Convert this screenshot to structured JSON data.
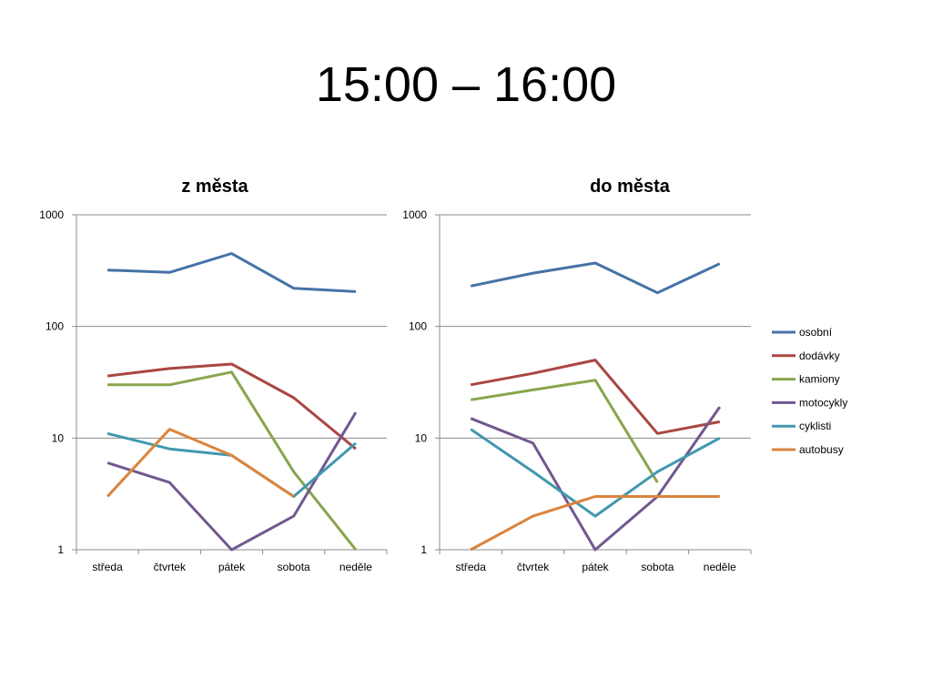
{
  "slide": {
    "title": "15:00 – 16:00"
  },
  "series_colors": {
    "osobní": "#4572a7",
    "dodávky": "#aa4643",
    "kamiony": "#89a54e",
    "motocykly": "#71588f",
    "cyklisti": "#4198af",
    "autobusy": "#db843d"
  },
  "legend": [
    "osobní",
    "dodávky",
    "kamiony",
    "motocykly",
    "cyklisti",
    "autobusy"
  ],
  "chart_data": [
    {
      "type": "line",
      "title": "z města",
      "y_scale": "log",
      "ylim": [
        1,
        1000
      ],
      "y_ticks": [
        "1",
        "10",
        "100",
        "1000"
      ],
      "grid": true,
      "categories": [
        "středa",
        "čtvrtek",
        "pátek",
        "sobota",
        "neděle"
      ],
      "series": [
        {
          "name": "osobní",
          "values": [
            320,
            305,
            450,
            220,
            205
          ]
        },
        {
          "name": "dodávky",
          "values": [
            36,
            42,
            46,
            23,
            8
          ]
        },
        {
          "name": "kamiony",
          "values": [
            30,
            30,
            39,
            5,
            1
          ]
        },
        {
          "name": "motocykly",
          "values": [
            6,
            4,
            1,
            2,
            17
          ]
        },
        {
          "name": "cyklisti",
          "values": [
            11,
            8,
            7,
            3,
            9
          ]
        },
        {
          "name": "autobusy",
          "values": [
            3,
            12,
            7,
            3,
            null
          ]
        }
      ]
    },
    {
      "type": "line",
      "title": "do města",
      "y_scale": "log",
      "ylim": [
        1,
        1000
      ],
      "y_ticks": [
        "1",
        "10",
        "100",
        "1000"
      ],
      "grid": true,
      "legend_position": "right",
      "categories": [
        "středa",
        "čtvrtek",
        "pátek",
        "sobota",
        "neděle"
      ],
      "series": [
        {
          "name": "osobní",
          "values": [
            230,
            300,
            370,
            200,
            365
          ]
        },
        {
          "name": "dodávky",
          "values": [
            30,
            38,
            50,
            11,
            14
          ]
        },
        {
          "name": "kamiony",
          "values": [
            22,
            27,
            33,
            4,
            null
          ]
        },
        {
          "name": "motocykly",
          "values": [
            15,
            9,
            1,
            3,
            19
          ]
        },
        {
          "name": "cyklisti",
          "values": [
            12,
            5,
            2,
            5,
            10
          ]
        },
        {
          "name": "autobusy",
          "values": [
            1,
            2,
            3,
            3,
            3
          ]
        }
      ]
    }
  ]
}
